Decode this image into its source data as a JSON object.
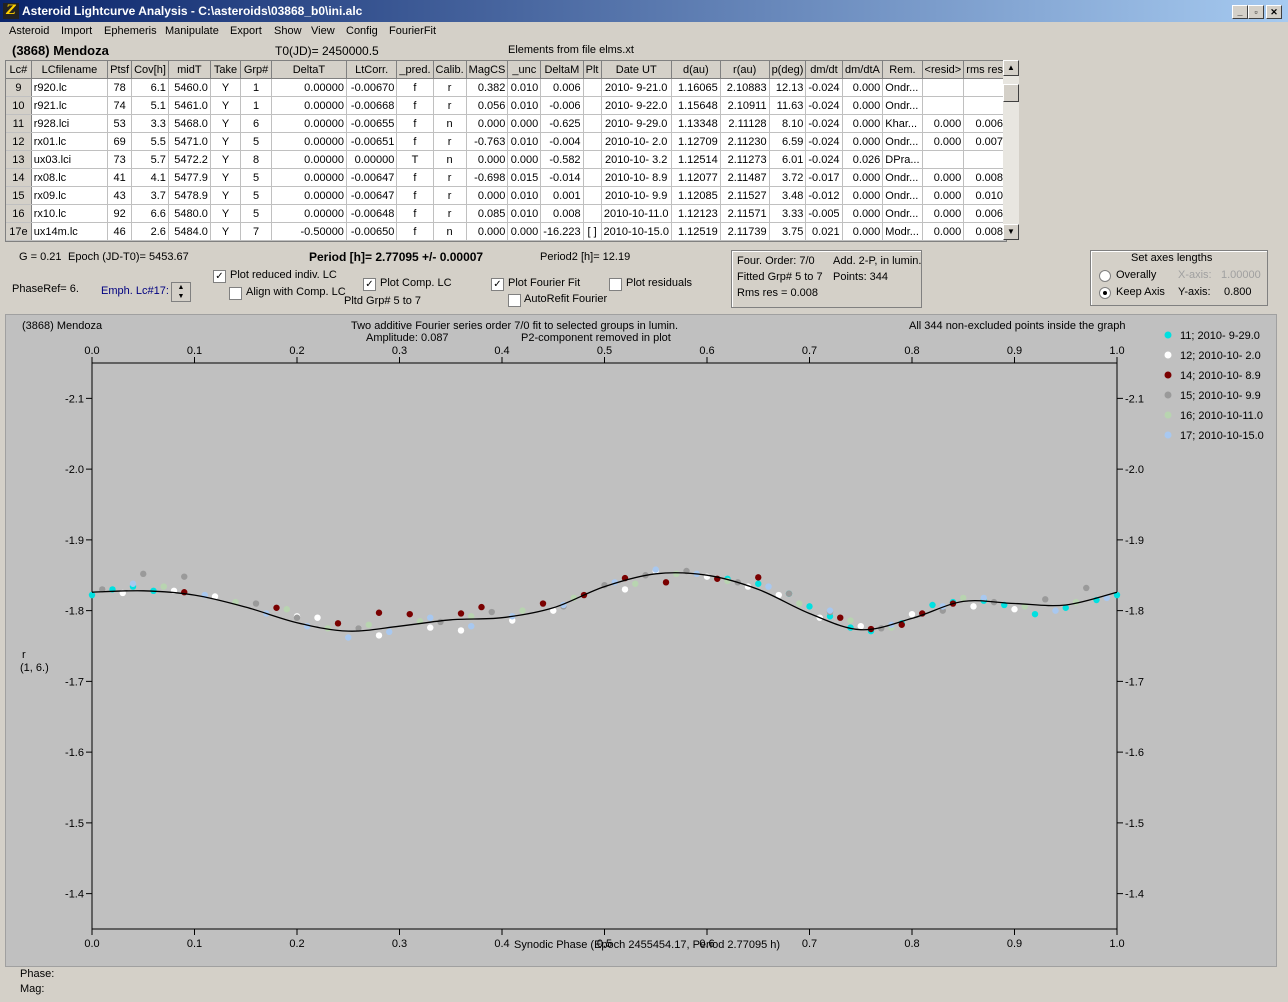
{
  "window": {
    "title": "Asteroid Lightcurve Analysis - C:\\asteroids\\03868_b0\\ini.alc",
    "app_icon": "asteroid-lightcurve-app-icon",
    "icon_glyph": "Z"
  },
  "menu": [
    "Asteroid",
    "Import",
    "Ephemeris",
    "Manipulate",
    "Export",
    "Show",
    "View",
    "Config",
    "FourierFit"
  ],
  "header": {
    "object": "(3868) Mendoza",
    "t0": "T0(JD)= 2450000.5",
    "elements": "Elements from file elms.xt"
  },
  "table": {
    "columns": [
      "Lc#",
      "LCfilename",
      "Ptsf",
      "Cov[h]",
      "midT",
      "Take",
      "Grp#",
      "DeltaT",
      "LtCorr.",
      "_pred.",
      "Calib.",
      "MagCS",
      "_unc",
      "DeltaM",
      "Plt",
      "Date UT",
      "d(au)",
      "r(au)",
      "p(deg)",
      "dm/dt",
      "dm/dtA",
      "Rem.",
      "<resid>",
      "rms res"
    ],
    "rows": [
      [
        "9",
        "r920.lc",
        "78",
        "6.1",
        "5460.0",
        "Y",
        "1",
        "0.00000",
        "-0.00670",
        "f",
        "r",
        "0.382",
        "0.010",
        "0.006",
        "",
        "2010- 9-21.0",
        "1.16065",
        "2.10883",
        "12.13",
        "-0.024",
        "0.000",
        "Ondr...",
        "",
        ""
      ],
      [
        "10",
        "r921.lc",
        "74",
        "5.1",
        "5461.0",
        "Y",
        "1",
        "0.00000",
        "-0.00668",
        "f",
        "r",
        "0.056",
        "0.010",
        "-0.006",
        "",
        "2010- 9-22.0",
        "1.15648",
        "2.10911",
        "11.63",
        "-0.024",
        "0.000",
        "Ondr...",
        "",
        ""
      ],
      [
        "11",
        "r928.lci",
        "53",
        "3.3",
        "5468.0",
        "Y",
        "6",
        "0.00000",
        "-0.00655",
        "f",
        "n",
        "0.000",
        "0.000",
        "-0.625",
        "",
        "2010- 9-29.0",
        "1.13348",
        "2.11128",
        "8.10",
        "-0.024",
        "0.000",
        "Khar...",
        "0.000",
        "0.006"
      ],
      [
        "12",
        "rx01.lc",
        "69",
        "5.5",
        "5471.0",
        "Y",
        "5",
        "0.00000",
        "-0.00651",
        "f",
        "r",
        "-0.763",
        "0.010",
        "-0.004",
        "",
        "2010-10- 2.0",
        "1.12709",
        "2.11230",
        "6.59",
        "-0.024",
        "0.000",
        "Ondr...",
        "0.000",
        "0.007"
      ],
      [
        "13",
        "ux03.lci",
        "73",
        "5.7",
        "5472.2",
        "Y",
        "8",
        "0.00000",
        "0.00000",
        "T",
        "n",
        "0.000",
        "0.000",
        "-0.582",
        "",
        "2010-10- 3.2",
        "1.12514",
        "2.11273",
        "6.01",
        "-0.024",
        "0.026",
        "DPra...",
        "",
        ""
      ],
      [
        "14",
        "rx08.lc",
        "41",
        "4.1",
        "5477.9",
        "Y",
        "5",
        "0.00000",
        "-0.00647",
        "f",
        "r",
        "-0.698",
        "0.015",
        "-0.014",
        "",
        "2010-10- 8.9",
        "1.12077",
        "2.11487",
        "3.72",
        "-0.017",
        "0.000",
        "Ondr...",
        "0.000",
        "0.008"
      ],
      [
        "15",
        "rx09.lc",
        "43",
        "3.7",
        "5478.9",
        "Y",
        "5",
        "0.00000",
        "-0.00647",
        "f",
        "r",
        "0.000",
        "0.010",
        "0.001",
        "",
        "2010-10- 9.9",
        "1.12085",
        "2.11527",
        "3.48",
        "-0.012",
        "0.000",
        "Ondr...",
        "0.000",
        "0.010"
      ],
      [
        "16",
        "rx10.lc",
        "92",
        "6.6",
        "5480.0",
        "Y",
        "5",
        "0.00000",
        "-0.00648",
        "f",
        "r",
        "0.085",
        "0.010",
        "0.008",
        "",
        "2010-10-11.0",
        "1.12123",
        "2.11571",
        "3.33",
        "-0.005",
        "0.000",
        "Ondr...",
        "0.000",
        "0.006"
      ],
      [
        "17e",
        "ux14m.lc",
        "46",
        "2.6",
        "5484.0",
        "Y",
        "7",
        "-0.50000",
        "-0.00650",
        "f",
        "n",
        "0.000",
        "0.000",
        "-16.223",
        "[ ]",
        "2010-10-15.0",
        "1.12519",
        "2.11739",
        "3.75",
        "0.021",
        "0.000",
        "Modr...",
        "0.000",
        "0.008"
      ]
    ]
  },
  "controls": {
    "g": "G = 0.21",
    "epoch": "Epoch (JD-T0)= 5453.67",
    "period": "Period [h]= 2.77095 +/- 0.00007",
    "period2": "Period2 [h]= 12.19",
    "phaseref": "PhaseRef= 6.",
    "emph_lc": "Emph. Lc#17:",
    "plot_reduced": {
      "label": "Plot reduced indiv. LC",
      "checked": true
    },
    "align_comp": {
      "label": "Align with Comp. LC",
      "checked": false
    },
    "plot_comp": {
      "label": "Plot Comp. LC",
      "checked": true
    },
    "plot_fourier": {
      "label": "Plot Fourier Fit",
      "checked": true
    },
    "plot_residuals": {
      "label": "Plot residuals",
      "checked": false
    },
    "autorefit": {
      "label": "AutoRefit Fourier",
      "checked": false
    },
    "pltd_grp": "Pltd Grp#  5  to  7"
  },
  "fourier_box": {
    "order": "Four. Order:  7/0",
    "add": "Add. 2-P, in lumin.",
    "fitted": "Fitted Grp# 5 to 7",
    "points": "Points: 344",
    "rms": "Rms res     = 0.008"
  },
  "axes_box": {
    "title": "Set axes lengths",
    "overall": "Overally",
    "keep": "Keep Axis",
    "xaxis_label": "X-axis:",
    "xaxis_value": "1.00000",
    "yaxis_label": "Y-axis:",
    "yaxis_value": "0.800",
    "selected": "keep"
  },
  "plot": {
    "object": "(3868) Mendoza",
    "line1": "Two additive Fourier series order 7/0 fit to selected groups in lumin.",
    "line2a": "Amplitude: 0.087",
    "line2b": "P2-component removed in plot",
    "note": "All 344 non-excluded points inside the graph",
    "xlabel": "Synodic Phase (Epoch 2455454.17, Period 2.77095 h)",
    "ylabel1": "r",
    "ylabel2": "(1, 6.)"
  },
  "status": {
    "phase": "Phase:",
    "mag": "Mag:"
  },
  "chart_data": {
    "type": "scatter",
    "xlabel": "Synodic Phase (Epoch 2455454.17, Period 2.77095 h)",
    "ylabel": "r (1, 6.)",
    "xlim": [
      0,
      1
    ],
    "ylim": [
      -2.15,
      -1.35
    ],
    "y_inverted": true,
    "x_ticks": [
      "0.0",
      "0.1",
      "0.2",
      "0.3",
      "0.4",
      "0.5",
      "0.6",
      "0.7",
      "0.8",
      "0.9",
      "1.0"
    ],
    "y_ticks": [
      "-2.1",
      "-2.0",
      "-1.9",
      "-1.8",
      "-1.7",
      "-1.6",
      "-1.5",
      "-1.4"
    ],
    "legend_position": "right",
    "fourier_fit": {
      "x": [
        0,
        0.05,
        0.1,
        0.15,
        0.2,
        0.25,
        0.3,
        0.35,
        0.4,
        0.45,
        0.5,
        0.55,
        0.6,
        0.65,
        0.7,
        0.75,
        0.8,
        0.85,
        0.9,
        0.95,
        1.0
      ],
      "y": [
        -1.826,
        -1.828,
        -1.822,
        -1.805,
        -1.783,
        -1.771,
        -1.778,
        -1.787,
        -1.79,
        -1.804,
        -1.834,
        -1.852,
        -1.85,
        -1.83,
        -1.796,
        -1.773,
        -1.789,
        -1.813,
        -1.81,
        -1.808,
        -1.826
      ]
    },
    "series": [
      {
        "name": "11; 2010- 9-29.0",
        "color": "#00e0e0",
        "x": [
          0.0,
          0.02,
          0.04,
          0.06,
          0.62,
          0.65,
          0.68,
          0.7,
          0.72,
          0.74,
          0.76,
          0.79,
          0.82,
          0.84,
          0.87,
          0.89,
          0.92,
          0.95,
          0.98,
          1.0
        ],
        "y": [
          -1.822,
          -1.83,
          -1.834,
          -1.828,
          -1.845,
          -1.838,
          -1.824,
          -1.806,
          -1.792,
          -1.776,
          -1.771,
          -1.782,
          -1.808,
          -1.812,
          -1.814,
          -1.808,
          -1.795,
          -1.804,
          -1.815,
          -1.822
        ]
      },
      {
        "name": "12; 2010-10- 2.0",
        "color": "#ffffff",
        "x": [
          0.03,
          0.08,
          0.12,
          0.2,
          0.22,
          0.26,
          0.28,
          0.33,
          0.36,
          0.41,
          0.45,
          0.52,
          0.55,
          0.6,
          0.64,
          0.67,
          0.71,
          0.75,
          0.8,
          0.86,
          0.9
        ],
        "y": [
          -1.825,
          -1.828,
          -1.82,
          -1.792,
          -1.79,
          -1.775,
          -1.765,
          -1.776,
          -1.772,
          -1.786,
          -1.8,
          -1.83,
          -1.856,
          -1.848,
          -1.834,
          -1.822,
          -1.79,
          -1.778,
          -1.795,
          -1.806,
          -1.802
        ]
      },
      {
        "name": "14; 2010-10- 8.9",
        "color": "#7a0000",
        "x": [
          0.09,
          0.18,
          0.24,
          0.28,
          0.31,
          0.36,
          0.38,
          0.44,
          0.48,
          0.52,
          0.56,
          0.61,
          0.65,
          0.73,
          0.76,
          0.79,
          0.81,
          0.84
        ],
        "y": [
          -1.826,
          -1.804,
          -1.782,
          -1.797,
          -1.795,
          -1.796,
          -1.805,
          -1.81,
          -1.822,
          -1.846,
          -1.84,
          -1.845,
          -1.847,
          -1.79,
          -1.774,
          -1.78,
          -1.796,
          -1.81
        ]
      },
      {
        "name": "15; 2010-10- 9.9",
        "color": "#9a9a9a",
        "x": [
          0.01,
          0.05,
          0.09,
          0.16,
          0.2,
          0.26,
          0.34,
          0.39,
          0.46,
          0.5,
          0.54,
          0.58,
          0.63,
          0.68,
          0.72,
          0.77,
          0.83,
          0.88,
          0.93,
          0.97
        ],
        "y": [
          -1.83,
          -1.852,
          -1.848,
          -1.81,
          -1.79,
          -1.775,
          -1.784,
          -1.798,
          -1.806,
          -1.836,
          -1.85,
          -1.856,
          -1.84,
          -1.824,
          -1.798,
          -1.775,
          -1.8,
          -1.812,
          -1.816,
          -1.832
        ]
      },
      {
        "name": "16; 2010-10-11.0",
        "color": "#b8d4b0",
        "x": [
          0.07,
          0.14,
          0.19,
          0.23,
          0.27,
          0.32,
          0.37,
          0.42,
          0.47,
          0.53,
          0.57,
          0.62,
          0.69,
          0.74,
          0.78,
          0.85,
          0.91,
          0.96
        ],
        "y": [
          -1.834,
          -1.812,
          -1.802,
          -1.775,
          -1.78,
          -1.785,
          -1.792,
          -1.8,
          -1.818,
          -1.838,
          -1.852,
          -1.842,
          -1.81,
          -1.786,
          -1.776,
          -1.818,
          -1.806,
          -1.812
        ]
      },
      {
        "name": "17; 2010-10-15.0",
        "color": "#a8c8f0",
        "x": [
          0.04,
          0.11,
          0.17,
          0.21,
          0.25,
          0.29,
          0.33,
          0.37,
          0.41,
          0.46,
          0.51,
          0.55,
          0.59,
          0.66,
          0.72,
          0.78,
          0.83,
          0.87,
          0.94,
          0.99
        ],
        "y": [
          -1.838,
          -1.822,
          -1.796,
          -1.778,
          -1.762,
          -1.77,
          -1.79,
          -1.778,
          -1.792,
          -1.808,
          -1.84,
          -1.858,
          -1.852,
          -1.834,
          -1.8,
          -1.78,
          -1.806,
          -1.818,
          -1.8,
          -1.818
        ]
      }
    ]
  }
}
